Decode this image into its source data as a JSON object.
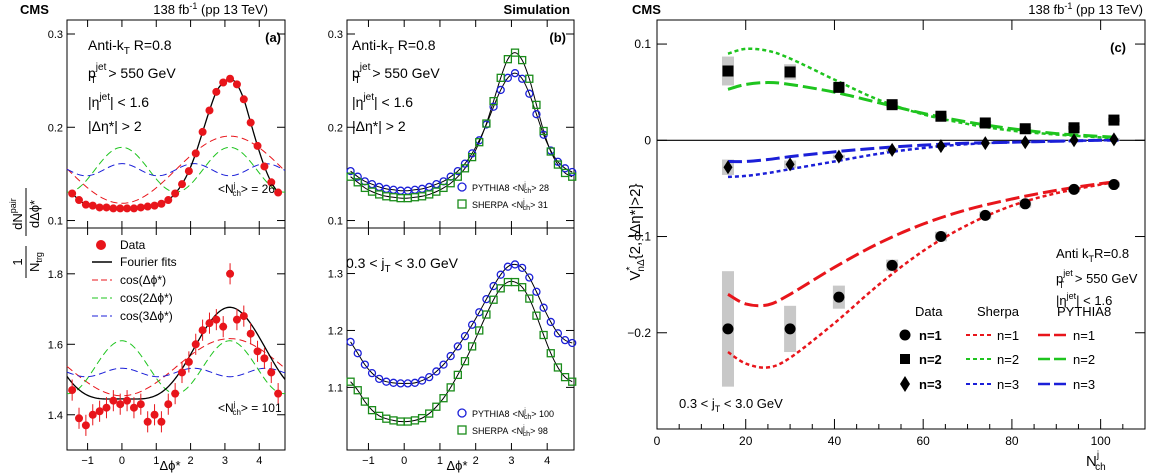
{
  "header": {
    "cms_left": "CMS",
    "lumi_left": "138 fb",
    "lumi_left_sup": "-1",
    "lumi_left_tail": " (pp 13 TeV)",
    "simulation": "Simulation",
    "cms_right": "CMS",
    "lumi_right": "138 fb",
    "lumi_right_sup": "-1",
    "lumi_right_tail": " (pp 13 TeV)"
  },
  "panel_a": {
    "tag": "(a)",
    "ylabel_left": "1",
    "ylabel_ntrg": "N",
    "ylabel_ntrg_sub": "trg",
    "ylabel_dn": "dN",
    "ylabel_dn_sup": "pair",
    "ylabel_dphi": "dΔϕ*",
    "cuts": {
      "jet": "Anti-k",
      "jet_sub": "T",
      "jet_tail": " R=0.8",
      "pt": "p",
      "pt_sup": "jet",
      "pt_sub": "T",
      "pt_tail": " > 550 GeV",
      "eta": "|η",
      "eta_sup": "jet",
      "eta_tail": "| < 1.6",
      "deta": "|Δη*| > 2"
    },
    "nch_top": "<N",
    "nch_top_sup": "j",
    "nch_top_sub": "ch",
    "nch_top_tail": "> = 26",
    "nch_bottom": "<N",
    "nch_bottom_sup": "j",
    "nch_bottom_sub": "ch",
    "nch_bottom_tail": "> = 101",
    "legend": [
      "Data",
      "Fourier fits",
      "cos(Δϕ*)",
      "cos(2Δϕ*)",
      "cos(3Δϕ*)"
    ],
    "xlabel": "Δϕ*",
    "xticks": [
      "−1",
      "0",
      "1",
      "2",
      "3",
      "4"
    ],
    "yticks_top": [
      "0.1",
      "0.2",
      "0.3"
    ],
    "yticks_bottom": [
      "1.4",
      "1.6",
      "1.8"
    ]
  },
  "panel_b": {
    "tag": "(b)",
    "cuts": {
      "jet": "Anti-k",
      "jet_sub": "T",
      "jet_tail": " R=0.8",
      "pt": "p",
      "pt_sup": "jet",
      "pt_sub": "T",
      "pt_tail": " > 550 GeV",
      "eta": "|η",
      "eta_sup": "jet",
      "eta_tail": "| < 1.6",
      "deta": "|Δη*| > 2"
    },
    "jt_range": "0.3 < j",
    "jt_range_sub": "T",
    "jt_range_tail": " < 3.0 GeV",
    "leg_top": [
      {
        "name": "PYTHIA8",
        "nch": "<N",
        "sup": "j",
        "sub": "ch",
        "tail": "> 28"
      },
      {
        "name": "SHERPA",
        "nch": "<N",
        "sup": "j",
        "sub": "ch",
        "tail": "> 31"
      }
    ],
    "leg_bottom": [
      {
        "name": "PYTHIA8",
        "nch": "<N",
        "sup": "j",
        "sub": "ch",
        "tail": "> 100"
      },
      {
        "name": "SHERPA",
        "nch": "<N",
        "sup": "j",
        "sub": "ch",
        "tail": "> 98"
      }
    ],
    "xlabel": "Δϕ*",
    "xticks": [
      "−1",
      "0",
      "1",
      "2",
      "3",
      "4"
    ],
    "yticks_top": [
      "0.1",
      "0.2",
      "0.3"
    ],
    "yticks_bottom": [
      "1.1",
      "1.2",
      "1.3"
    ]
  },
  "panel_c": {
    "tag": "(c)",
    "ylabel": "V",
    "ylabel_sup": "*",
    "ylabel_sub": "nΔ",
    "ylabel_tail": "{2, |Δη*|>2}",
    "xlabel": "N",
    "xlabel_sup": "j",
    "xlabel_sub": "ch",
    "cuts": {
      "jet": "Anti k",
      "jet_sub": "T",
      "jet_tail": "R=0.8",
      "pt": "p",
      "pt_sup": "jet",
      "pt_sub": "T",
      "pt_tail": " > 550 GeV",
      "eta": "|η",
      "eta_sup": "jet",
      "eta_tail": "| < 1.6"
    },
    "jt_range": "0.3 < j",
    "jt_range_sub": "T",
    "jt_range_tail": " < 3.0 GeV",
    "legend_headers": [
      "Data",
      "Sherpa",
      "PYTHIA8"
    ],
    "legend_rows": [
      "n=1",
      "n=2",
      "n=3"
    ],
    "xticks": [
      "0",
      "20",
      "40",
      "60",
      "80",
      "100"
    ],
    "yticks": [
      "−0.2",
      "−0.1",
      "0",
      "0.1"
    ]
  },
  "colors": {
    "n1": "#e8151b",
    "n2": "#1ec41e",
    "n3": "#1b1fd8",
    "data": "#e8151b",
    "pythia": "#1b1fd8",
    "sherpa": "#1a8c1a",
    "band": "#c8c8c8"
  },
  "chart_data": [
    {
      "type": "scatter",
      "panel": "a-top",
      "xlabel": "Δϕ*",
      "xlim": [
        -1.6,
        4.75
      ],
      "ylim": [
        0.092,
        0.315
      ],
      "fit": {
        "mean": 0.1545,
        "v1": 0.012,
        "v2": 0.024,
        "v3": 0.0065
      },
      "series": [
        {
          "name": "Data",
          "x": [
            -1.45,
            -1.25,
            -1.05,
            -0.85,
            -0.65,
            -0.45,
            -0.25,
            -0.05,
            0.15,
            0.35,
            0.55,
            0.75,
            0.95,
            1.15,
            1.35,
            1.55,
            1.75,
            1.95,
            2.15,
            2.35,
            2.55,
            2.75,
            2.95,
            3.15,
            3.35,
            3.55,
            3.75,
            3.95,
            4.15,
            4.35,
            4.55
          ],
          "y": [
            0.129,
            0.122,
            0.117,
            0.116,
            0.114,
            0.114,
            0.113,
            0.113,
            0.113,
            0.113,
            0.114,
            0.115,
            0.116,
            0.118,
            0.122,
            0.129,
            0.139,
            0.153,
            0.172,
            0.195,
            0.218,
            0.238,
            0.248,
            0.252,
            0.246,
            0.23,
            0.205,
            0.18,
            0.158,
            0.141,
            0.13
          ]
        }
      ]
    },
    {
      "type": "scatter",
      "panel": "a-bottom",
      "xlabel": "Δϕ*",
      "xlim": [
        -1.6,
        4.75
      ],
      "ylim": [
        1.3,
        1.93
      ],
      "fit": {
        "mean": 1.535,
        "v1": 0.045,
        "v2": 0.075,
        "v3": 0.012
      },
      "series": [
        {
          "name": "Data",
          "x": [
            -1.45,
            -1.25,
            -1.05,
            -0.85,
            -0.65,
            -0.45,
            -0.25,
            -0.05,
            0.15,
            0.35,
            0.55,
            0.75,
            0.95,
            1.15,
            1.35,
            1.55,
            1.75,
            1.95,
            2.15,
            2.35,
            2.55,
            2.75,
            2.95,
            3.15,
            3.35,
            3.55,
            3.75,
            3.95,
            4.15,
            4.35,
            4.55
          ],
          "y": [
            1.47,
            1.39,
            1.37,
            1.4,
            1.41,
            1.42,
            1.44,
            1.43,
            1.44,
            1.42,
            1.43,
            1.38,
            1.4,
            1.38,
            1.43,
            1.46,
            1.52,
            1.55,
            1.6,
            1.64,
            1.66,
            1.67,
            1.65,
            1.8,
            1.67,
            1.68,
            1.63,
            1.58,
            1.56,
            1.52,
            1.46
          ],
          "err": [
            0.03,
            0.03,
            0.03,
            0.03,
            0.03,
            0.03,
            0.03,
            0.03,
            0.03,
            0.03,
            0.03,
            0.03,
            0.03,
            0.03,
            0.03,
            0.03,
            0.03,
            0.03,
            0.03,
            0.03,
            0.03,
            0.03,
            0.03,
            0.03,
            0.03,
            0.03,
            0.03,
            0.03,
            0.03,
            0.03,
            0.03
          ]
        }
      ]
    },
    {
      "type": "scatter",
      "panel": "b-top",
      "xlabel": "Δϕ*",
      "xlim": [
        -1.6,
        4.75
      ],
      "ylim": [
        0.092,
        0.315
      ],
      "series": [
        {
          "name": "PYTHIA8",
          "x": [
            -1.5,
            -1.3,
            -1.1,
            -0.9,
            -0.7,
            -0.5,
            -0.3,
            -0.1,
            0.1,
            0.3,
            0.5,
            0.7,
            0.9,
            1.1,
            1.3,
            1.5,
            1.7,
            1.9,
            2.1,
            2.3,
            2.5,
            2.7,
            2.9,
            3.1,
            3.3,
            3.5,
            3.7,
            3.9,
            4.1,
            4.3,
            4.5,
            4.7
          ],
          "y": [
            0.153,
            0.147,
            0.142,
            0.139,
            0.136,
            0.134,
            0.133,
            0.132,
            0.132,
            0.133,
            0.134,
            0.136,
            0.139,
            0.142,
            0.147,
            0.153,
            0.161,
            0.172,
            0.186,
            0.203,
            0.222,
            0.24,
            0.253,
            0.258,
            0.252,
            0.236,
            0.214,
            0.192,
            0.175,
            0.163,
            0.156,
            0.152
          ]
        },
        {
          "name": "SHERPA",
          "x": [
            -1.5,
            -1.3,
            -1.1,
            -0.9,
            -0.7,
            -0.5,
            -0.3,
            -0.1,
            0.1,
            0.3,
            0.5,
            0.7,
            0.9,
            1.1,
            1.3,
            1.5,
            1.7,
            1.9,
            2.1,
            2.3,
            2.5,
            2.7,
            2.9,
            3.1,
            3.3,
            3.5,
            3.7,
            3.9,
            4.1,
            4.3,
            4.5,
            4.7
          ],
          "y": [
            0.147,
            0.141,
            0.135,
            0.131,
            0.128,
            0.126,
            0.125,
            0.124,
            0.124,
            0.125,
            0.126,
            0.128,
            0.131,
            0.135,
            0.14,
            0.147,
            0.156,
            0.168,
            0.184,
            0.204,
            0.228,
            0.253,
            0.273,
            0.28,
            0.272,
            0.252,
            0.224,
            0.196,
            0.174,
            0.16,
            0.151,
            0.147
          ]
        }
      ]
    },
    {
      "type": "scatter",
      "panel": "b-bottom",
      "xlabel": "Δϕ*",
      "xlim": [
        -1.6,
        4.75
      ],
      "ylim": [
        0.99,
        1.38
      ],
      "series": [
        {
          "name": "PYTHIA8",
          "x": [
            -1.5,
            -1.3,
            -1.1,
            -0.9,
            -0.7,
            -0.5,
            -0.3,
            -0.1,
            0.1,
            0.3,
            0.5,
            0.7,
            0.9,
            1.1,
            1.3,
            1.5,
            1.7,
            1.9,
            2.1,
            2.3,
            2.5,
            2.7,
            2.9,
            3.1,
            3.3,
            3.5,
            3.7,
            3.9,
            4.1,
            4.3,
            4.5,
            4.7
          ],
          "y": [
            1.18,
            1.16,
            1.14,
            1.125,
            1.115,
            1.11,
            1.108,
            1.107,
            1.107,
            1.108,
            1.112,
            1.118,
            1.128,
            1.14,
            1.155,
            1.172,
            1.19,
            1.21,
            1.232,
            1.255,
            1.278,
            1.298,
            1.312,
            1.316,
            1.31,
            1.293,
            1.268,
            1.24,
            1.215,
            1.195,
            1.183,
            1.178
          ]
        },
        {
          "name": "SHERPA",
          "x": [
            -1.5,
            -1.3,
            -1.1,
            -0.9,
            -0.7,
            -0.5,
            -0.3,
            -0.1,
            0.1,
            0.3,
            0.5,
            0.7,
            0.9,
            1.1,
            1.3,
            1.5,
            1.7,
            1.9,
            2.1,
            2.3,
            2.5,
            2.7,
            2.9,
            3.1,
            3.3,
            3.5,
            3.7,
            3.9,
            4.1,
            4.3,
            4.5,
            4.7
          ],
          "y": [
            1.11,
            1.095,
            1.075,
            1.06,
            1.05,
            1.045,
            1.042,
            1.04,
            1.04,
            1.042,
            1.046,
            1.054,
            1.066,
            1.081,
            1.1,
            1.122,
            1.146,
            1.172,
            1.2,
            1.228,
            1.254,
            1.274,
            1.285,
            1.285,
            1.276,
            1.256,
            1.226,
            1.192,
            1.16,
            1.135,
            1.118,
            1.11
          ]
        }
      ]
    },
    {
      "type": "scatter",
      "panel": "c",
      "xlabel": "N_ch^j",
      "xlim": [
        0,
        110
      ],
      "ylim": [
        -0.3,
        0.125
      ],
      "x": [
        16,
        30,
        41,
        53,
        64,
        74,
        83,
        94,
        103
      ],
      "series": [
        {
          "name": "n=1",
          "marker": "circle",
          "y": [
            -0.196,
            -0.196,
            -0.163,
            -0.13,
            -0.1,
            -0.078,
            -0.066,
            -0.051,
            -0.046
          ],
          "sys": [
            0.06,
            0.024,
            0.012,
            0.006,
            0.005,
            0.004,
            0.004,
            0.003,
            0.003
          ]
        },
        {
          "name": "n=2",
          "marker": "square",
          "y": [
            0.072,
            0.071,
            0.055,
            0.037,
            0.025,
            0.018,
            0.012,
            0.013,
            0.021
          ],
          "sys": [
            0.015,
            0.008,
            0.004,
            0.003,
            0.002,
            0.002,
            0.002,
            0.002,
            0.002
          ]
        },
        {
          "name": "n=3",
          "marker": "diamond",
          "y": [
            -0.028,
            -0.025,
            -0.017,
            -0.01,
            -0.006,
            -0.003,
            -0.002,
            0.0,
            0.001
          ],
          "sys": [
            0.008,
            0.004,
            0.002,
            0.002,
            0.001,
            0.001,
            0.001,
            0.001,
            0.001
          ]
        }
      ],
      "curves": {
        "sherpa_n1": {
          "x": [
            16,
            20,
            25,
            30,
            40,
            50,
            60,
            70,
            80,
            90,
            100,
            104
          ],
          "y": [
            -0.22,
            -0.232,
            -0.236,
            -0.226,
            -0.19,
            -0.15,
            -0.115,
            -0.088,
            -0.068,
            -0.055,
            -0.046,
            -0.043
          ]
        },
        "pythia_n1": {
          "x": [
            16,
            20,
            25,
            30,
            40,
            50,
            60,
            70,
            80,
            90,
            100,
            104
          ],
          "y": [
            -0.16,
            -0.17,
            -0.171,
            -0.16,
            -0.132,
            -0.107,
            -0.087,
            -0.072,
            -0.061,
            -0.052,
            -0.045,
            -0.043
          ]
        },
        "sherpa_n2": {
          "x": [
            16,
            20,
            25,
            30,
            40,
            50,
            60,
            70,
            80,
            90,
            100,
            104
          ],
          "y": [
            0.09,
            0.095,
            0.093,
            0.085,
            0.063,
            0.042,
            0.027,
            0.017,
            0.01,
            0.006,
            0.003,
            0.002
          ]
        },
        "pythia_n2": {
          "x": [
            16,
            20,
            25,
            30,
            40,
            50,
            60,
            70,
            80,
            90,
            100,
            104
          ],
          "y": [
            0.053,
            0.058,
            0.06,
            0.058,
            0.05,
            0.039,
            0.028,
            0.019,
            0.012,
            0.007,
            0.004,
            0.003
          ]
        },
        "sherpa_n3": {
          "x": [
            16,
            20,
            25,
            30,
            40,
            50,
            60,
            70,
            80,
            90,
            100,
            104
          ],
          "y": [
            -0.038,
            -0.037,
            -0.034,
            -0.03,
            -0.022,
            -0.014,
            -0.008,
            -0.004,
            -0.002,
            -0.001,
            0.0,
            0.0
          ]
        },
        "pythia_n3": {
          "x": [
            16,
            20,
            25,
            30,
            40,
            50,
            60,
            70,
            80,
            90,
            100,
            104
          ],
          "y": [
            -0.022,
            -0.022,
            -0.02,
            -0.017,
            -0.012,
            -0.008,
            -0.005,
            -0.003,
            -0.002,
            -0.001,
            0.0,
            0.0
          ]
        }
      }
    }
  ]
}
